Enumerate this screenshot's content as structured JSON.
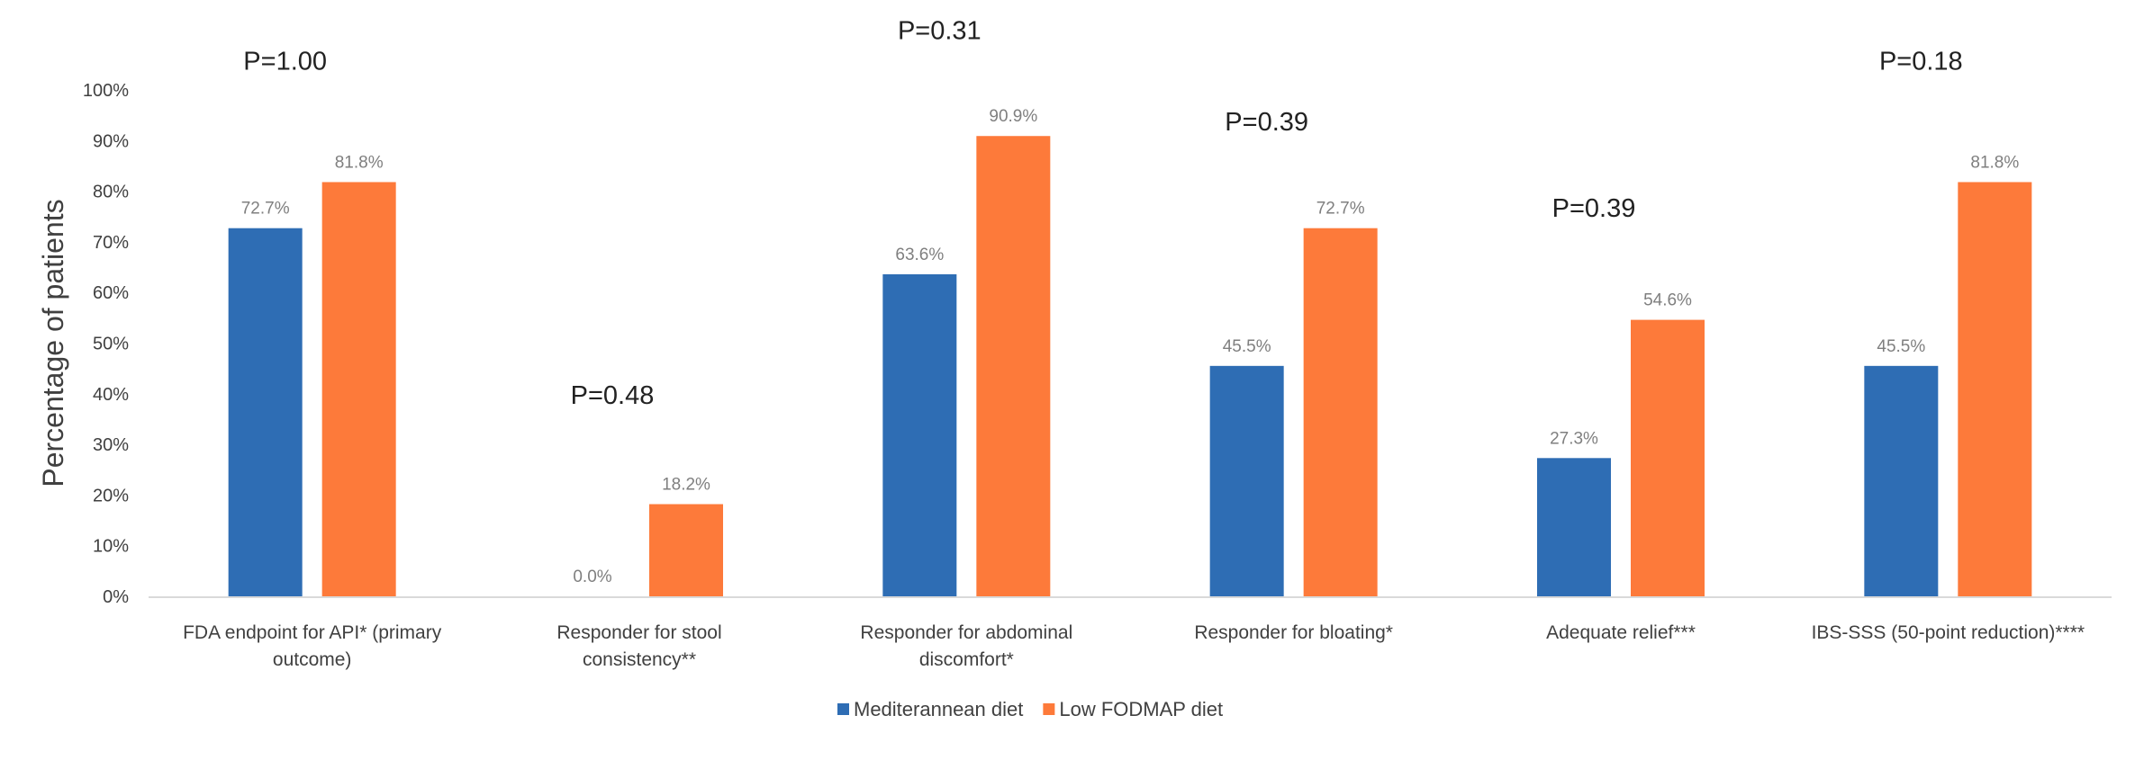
{
  "chart_data": {
    "type": "bar",
    "title": "",
    "xlabel": "",
    "ylabel": "Percentage of patients",
    "ylim": [
      0,
      100
    ],
    "yticks": [
      "0%",
      "10%",
      "20%",
      "30%",
      "40%",
      "50%",
      "60%",
      "70%",
      "80%",
      "90%",
      "100%"
    ],
    "grid": false,
    "legend_position": "bottom",
    "categories": [
      [
        "FDA endpoint for API* (primary",
        "outcome)"
      ],
      [
        "Responder for stool",
        "consistency**"
      ],
      [
        "Responder for abdominal",
        "discomfort*"
      ],
      [
        "Responder for bloating*"
      ],
      [
        "Adequate relief***"
      ],
      [
        "IBS-SSS (50-point reduction)****"
      ]
    ],
    "series": [
      {
        "name": "Mediterannean diet",
        "color": "#2e6db4",
        "values": [
          72.7,
          0.0,
          63.6,
          45.5,
          27.3,
          45.5
        ],
        "labels": [
          "72.7%",
          "0.0%",
          "63.6%",
          "45.5%",
          "27.3%",
          "45.5%"
        ]
      },
      {
        "name": "Low FODMAP diet",
        "color": "#fd7a3a",
        "values": [
          81.8,
          18.2,
          90.9,
          72.7,
          54.6,
          81.8
        ],
        "labels": [
          "81.8%",
          "18.2%",
          "90.9%",
          "72.7%",
          "54.6%",
          "81.8%"
        ]
      }
    ],
    "annotations": [
      {
        "text": "P=1.00",
        "y": 104
      },
      {
        "text": "P=0.48",
        "y": 38
      },
      {
        "text": "P=0.31",
        "y": 110
      },
      {
        "text": "P=0.39",
        "y": 92
      },
      {
        "text": "P=0.39",
        "y": 75
      },
      {
        "text": "P=0.18",
        "y": 104
      }
    ]
  }
}
